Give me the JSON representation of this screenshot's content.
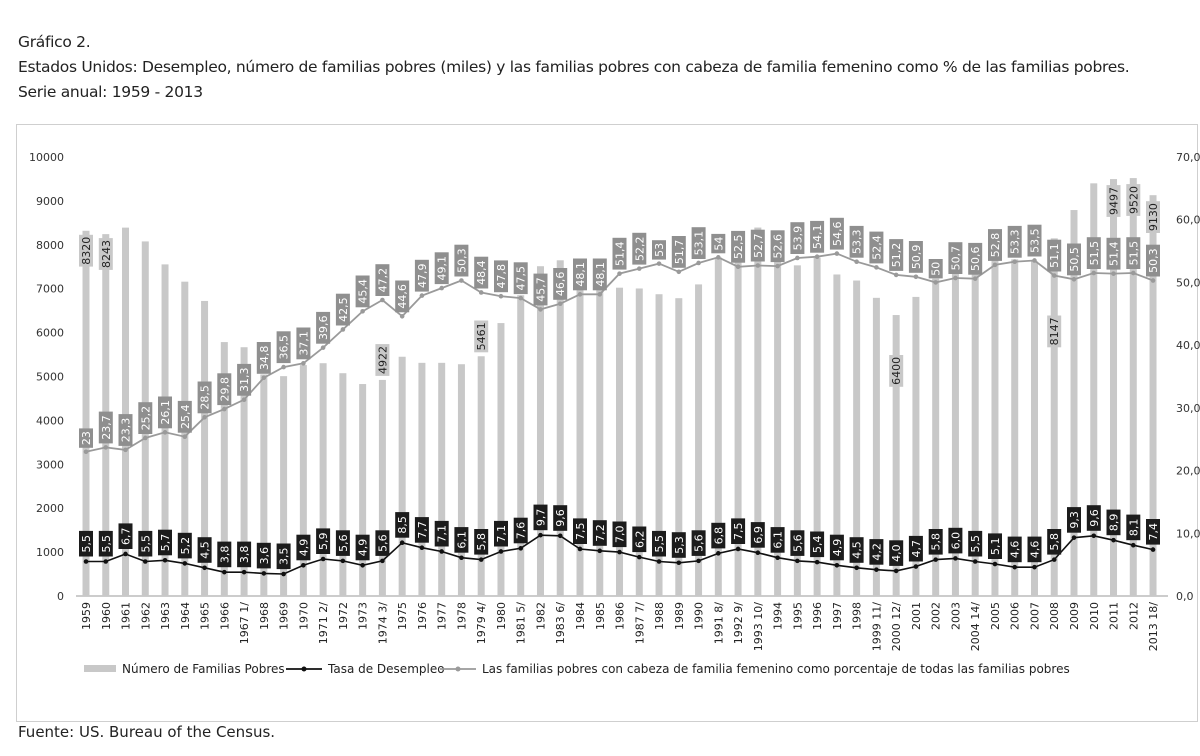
{
  "header": {
    "figure_number": "Gráfico 2.",
    "title": "Estados Unidos: Desempleo, número de familias pobres (miles) y las familias pobres con cabeza de familia femenino como % de las familias pobres.",
    "subtitle": "Serie anual: 1959 - 2013"
  },
  "source": "Fuente: US. Bureau of the Census.",
  "chart_data": {
    "type": "bar",
    "title": "Estados Unidos: Desempleo, número de familias pobres (miles) y las familias pobres con cabeza de familia femenino como % de las familias pobres.",
    "grid": false,
    "legend_position": "bottom",
    "colors": {
      "bars": "#c8c8c8",
      "unemployment": "#111111",
      "female_share": "#9a9a9a",
      "female_label_bg": "#8f8f8f",
      "unemp_label_bg": "#1c1c1c",
      "bar_label_bg": "#c8c8c8"
    },
    "y_left": {
      "min": 0,
      "max": 10000,
      "ticks": [
        "0",
        "1000",
        "2000",
        "3000",
        "4000",
        "5000",
        "6000",
        "7000",
        "8000",
        "9000",
        "10000"
      ]
    },
    "y_right": {
      "min": 0,
      "max": 70,
      "ticks": [
        "0,0",
        "10,0",
        "20,0",
        "30,0",
        "40,0",
        "50,0",
        "60,0",
        "70,0"
      ]
    },
    "categories": [
      "1959",
      "1960",
      "1961",
      "1962",
      "1963",
      "1964",
      "1965",
      "1966",
      "1967 1/",
      "1968",
      "1969",
      "1970",
      "1971 2/",
      "1972",
      "1973",
      "1974 3/",
      "1975",
      "1976",
      "1977",
      "1978",
      "1979 4/",
      "1980",
      "1981 5/",
      "1982",
      "1983 6/",
      "1984",
      "1985",
      "1986",
      "1987 7/",
      "1988",
      "1989",
      "1990",
      "1991 8/",
      "1992 9/",
      "1993 10/",
      "1994",
      "1995",
      "1996",
      "1997",
      "1998",
      "1999 11/",
      "2000 12/",
      "2001",
      "2002",
      "2003",
      "2004 14/",
      "2005",
      "2006",
      "2007",
      "2008",
      "2009",
      "2010",
      "2011",
      "2012",
      "2013 18/"
    ],
    "series": [
      {
        "name": "Número de Familias Pobres",
        "axis": "left",
        "type": "bar",
        "values": [
          8320,
          8243,
          8391,
          8077,
          7554,
          7160,
          6721,
          5784,
          5667,
          5047,
          5008,
          5260,
          5303,
          5075,
          4828,
          4922,
          5450,
          5311,
          5311,
          5280,
          5461,
          6217,
          6851,
          7512,
          7647,
          7277,
          7223,
          7023,
          7005,
          6874,
          6784,
          7098,
          7712,
          8144,
          8393,
          8053,
          7532,
          7708,
          7324,
          7186,
          6792,
          6400,
          6813,
          7229,
          7607,
          7835,
          7657,
          7668,
          7623,
          8147,
          8792,
          9400,
          9497,
          9520,
          9130
        ],
        "labels": [
          "8320",
          "8243",
          "",
          "",
          "",
          "",
          "",
          "",
          "",
          "",
          "",
          "",
          "",
          "",
          "",
          "4922",
          "",
          "",
          "",
          "",
          "5461",
          "",
          "",
          "",
          "",
          "",
          "",
          "",
          "",
          "",
          "",
          "",
          "",
          "",
          "",
          "",
          "",
          "",
          "",
          "",
          "",
          "6400",
          "",
          "",
          "",
          "",
          "",
          "",
          "",
          "8147",
          "",
          "",
          "9497",
          "9520",
          "9130"
        ]
      },
      {
        "name": "Tasa de Desempleo",
        "axis": "right",
        "type": "line",
        "values": [
          5.5,
          5.5,
          6.7,
          5.5,
          5.7,
          5.2,
          4.5,
          3.8,
          3.8,
          3.6,
          3.5,
          4.9,
          5.9,
          5.6,
          4.9,
          5.6,
          8.5,
          7.7,
          7.1,
          6.1,
          5.8,
          7.1,
          7.6,
          9.7,
          9.6,
          7.5,
          7.2,
          7.0,
          6.2,
          5.5,
          5.3,
          5.6,
          6.8,
          7.5,
          6.9,
          6.1,
          5.6,
          5.4,
          4.9,
          4.5,
          4.2,
          4.0,
          4.7,
          5.8,
          6.0,
          5.5,
          5.1,
          4.6,
          4.6,
          5.8,
          9.3,
          9.6,
          8.9,
          8.1,
          7.4
        ],
        "labels": [
          "5,5",
          "5,5",
          "6,7",
          "5,5",
          "5,7",
          "5,2",
          "4,5",
          "3,8",
          "3,8",
          "3,6",
          "3,5",
          "4,9",
          "5,9",
          "5,6",
          "4,9",
          "5,6",
          "8,5",
          "7,7",
          "7,1",
          "6,1",
          "5,8",
          "7,1",
          "7,6",
          "9,7",
          "9,6",
          "7,5",
          "7,2",
          "7,0",
          "6,2",
          "5,5",
          "5,3",
          "5,6",
          "6,8",
          "7,5",
          "6,9",
          "6,1",
          "5,6",
          "5,4",
          "4,9",
          "4,5",
          "4,2",
          "4,0",
          "4,7",
          "5,8",
          "6,0",
          "5,5",
          "5,1",
          "4,6",
          "4,6",
          "5,8",
          "9,3",
          "9,6",
          "8,9",
          "8,1",
          "7,4"
        ]
      },
      {
        "name": "Las familias pobres con cabeza de familia femenino como porcentaje de todas las familias pobres",
        "axis": "right",
        "type": "line",
        "values": [
          23,
          23.7,
          23.3,
          25.2,
          26.1,
          25.4,
          28.5,
          29.8,
          31.3,
          34.8,
          36.5,
          37.1,
          39.6,
          42.5,
          45.4,
          47.2,
          44.6,
          47.9,
          49.1,
          50.3,
          48.4,
          47.8,
          47.5,
          45.7,
          46.6,
          48.1,
          48.1,
          51.4,
          52.2,
          53,
          51.7,
          53.1,
          54,
          52.5,
          52.7,
          52.6,
          53.9,
          54.1,
          54.6,
          53.3,
          52.4,
          51.2,
          50.9,
          50,
          50.7,
          50.6,
          52.8,
          53.3,
          53.5,
          51.1,
          50.5,
          51.5,
          51.4,
          51.5,
          50.3
        ],
        "labels": [
          "23",
          "23,7",
          "23,3",
          "25,2",
          "26,1",
          "25,4",
          "28,5",
          "29,8",
          "31,3",
          "34,8",
          "36,5",
          "37,1",
          "39,6",
          "42,5",
          "45,4",
          "47,2",
          "44,6",
          "47,9",
          "49,1",
          "50,3",
          "48,4",
          "47,8",
          "47,5",
          "45,7",
          "46,6",
          "48,1",
          "48,1",
          "51,4",
          "52,2",
          "53",
          "51,7",
          "53,1",
          "54",
          "52,5",
          "52,7",
          "52,6",
          "53,9",
          "54,1",
          "54,6",
          "53,3",
          "52,4",
          "51,2",
          "50,9",
          "50",
          "50,7",
          "50,6",
          "52,8",
          "53,3",
          "53,5",
          "51,1",
          "50,5",
          "51,5",
          "51,4",
          "51,5",
          "50,3"
        ]
      }
    ]
  }
}
